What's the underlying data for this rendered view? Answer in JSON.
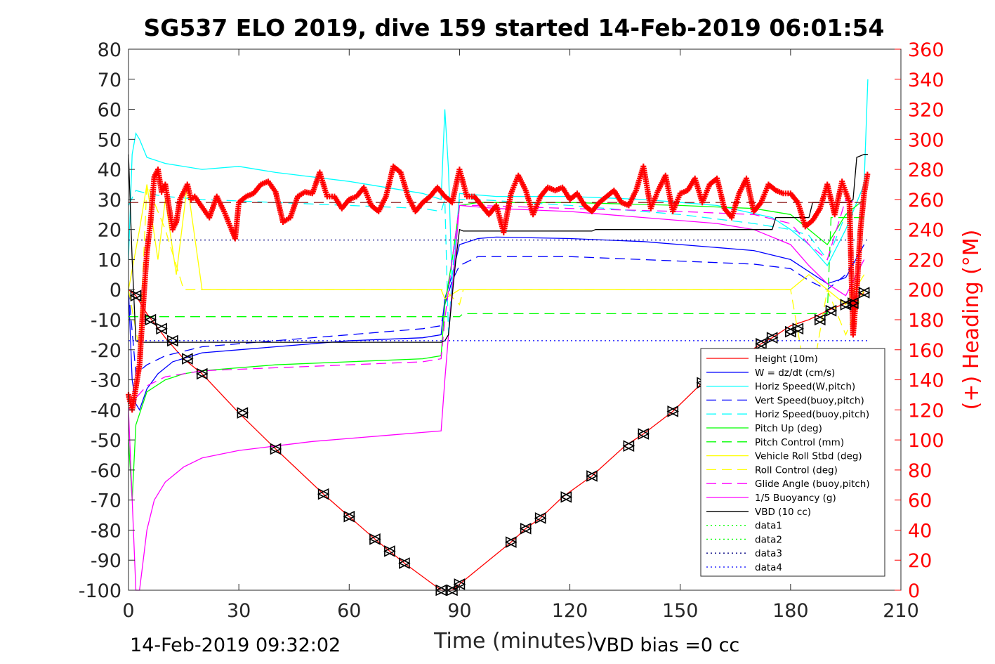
{
  "chart_data": {
    "type": "line",
    "title": "SG537 ELO 2019, dive 159 started 14-Feb-2019 06:01:54",
    "xlabel": "Time (minutes)",
    "ylabel": "",
    "ylabel_right": "(+) Heading (°M)",
    "xlim": [
      0,
      210
    ],
    "ylim": [
      -100,
      80
    ],
    "ylim_right": [
      0,
      360
    ],
    "xticks": [
      0,
      30,
      60,
      90,
      120,
      150,
      180,
      210
    ],
    "yticks": [
      -100,
      -90,
      -80,
      -70,
      -60,
      -50,
      -40,
      -30,
      -20,
      -10,
      0,
      10,
      20,
      30,
      40,
      50,
      60,
      70,
      80
    ],
    "yticks_right": [
      0,
      20,
      40,
      60,
      80,
      100,
      120,
      140,
      160,
      180,
      200,
      220,
      240,
      260,
      280,
      300,
      320,
      340,
      360
    ],
    "grid": false,
    "legend_position": "right-lower",
    "footer_left": "14-Feb-2019 09:32:02",
    "footer_right": "VBD bias =0 cc",
    "colors": {
      "red": "#ff0000",
      "blue": "#0000ff",
      "cyan": "#00ffff",
      "green": "#00ff00",
      "yellow": "#ffff00",
      "magenta": "#ff00ff",
      "black": "#000000"
    },
    "series": [
      {
        "name": "Height (10m)",
        "color": "#ff0000",
        "dash": "solid",
        "x": [
          0,
          2,
          5,
          10,
          15,
          20,
          30,
          40,
          53,
          60,
          67,
          71,
          75,
          85,
          88,
          90,
          104,
          108,
          112,
          118,
          126,
          135,
          140,
          148,
          156,
          172,
          175,
          180,
          185,
          190,
          195,
          200
        ],
        "y": [
          0,
          -2,
          -8,
          -16,
          -23,
          -28,
          -41,
          -53,
          -68,
          -75.5,
          -83,
          -87,
          -91,
          -100,
          -100,
          -98,
          -84,
          -79.5,
          -76,
          -69,
          -62,
          -52,
          -48,
          -40.5,
          -31,
          -18,
          -16,
          -12,
          -10,
          -7,
          -4.5,
          -1
        ]
      },
      {
        "name": "W = dz/dt (cm/s)",
        "color": "#0000ff",
        "dash": "solid",
        "x": [
          0,
          1,
          2,
          3,
          5,
          8,
          12,
          20,
          30,
          40,
          50,
          60,
          70,
          80,
          85,
          86,
          88,
          90,
          95,
          100,
          120,
          140,
          160,
          170,
          180,
          185,
          190,
          195,
          200
        ],
        "y": [
          0,
          -30,
          -38,
          -40,
          -33,
          -28,
          -24,
          -21,
          -20,
          -19,
          -18,
          -17,
          -16.5,
          -16,
          -15,
          -3,
          5,
          15,
          17,
          17.5,
          17,
          16,
          14,
          13,
          10,
          6,
          2,
          4,
          15
        ]
      },
      {
        "name": "Horiz Speed(W,pitch)",
        "color": "#00ffff",
        "dash": "solid",
        "x": [
          0,
          1,
          2,
          3,
          5,
          10,
          20,
          30,
          40,
          60,
          80,
          85,
          86,
          87,
          88,
          90,
          100,
          120,
          140,
          160,
          175,
          180,
          185,
          190,
          195,
          200,
          201
        ],
        "y": [
          10,
          45,
          52,
          50,
          44,
          42,
          40,
          41,
          39,
          36,
          32,
          30,
          60,
          40,
          0,
          32,
          31,
          31,
          30,
          28,
          24,
          20,
          15,
          8,
          20,
          35,
          70
        ]
      },
      {
        "name": "Vert Speed(buoy,pitch)",
        "color": "#0000ff",
        "dash": "dashed",
        "x": [
          0,
          2,
          5,
          10,
          20,
          40,
          60,
          80,
          85,
          86,
          88,
          90,
          95,
          120,
          150,
          170,
          180,
          185,
          190,
          195,
          200
        ],
        "y": [
          0,
          -28,
          -25,
          -22,
          -19,
          -17,
          -15,
          -13,
          -12,
          -5,
          3,
          8,
          11,
          11,
          9.5,
          8.5,
          7,
          3,
          0,
          5,
          15
        ]
      },
      {
        "name": "Horiz Speed(buoy,pitch)",
        "color": "#00ffff",
        "dash": "dashed",
        "x": [
          0,
          2,
          5,
          10,
          20,
          40,
          60,
          80,
          85,
          86,
          87,
          88,
          90,
          95,
          120,
          150,
          170,
          180,
          185,
          190,
          195,
          200
        ],
        "y": [
          28,
          33,
          32,
          31,
          30,
          29,
          28,
          27,
          26,
          30,
          -15,
          5,
          30,
          30,
          28,
          25,
          22,
          20,
          18,
          10,
          25,
          25
        ]
      },
      {
        "name": "Pitch Up (deg)",
        "color": "#00ff00",
        "dash": "solid",
        "x": [
          0,
          1,
          2,
          5,
          10,
          15,
          20,
          30,
          40,
          60,
          80,
          85,
          86,
          88,
          90,
          95,
          120,
          150,
          170,
          180,
          185,
          190,
          195,
          200
        ],
        "y": [
          -50,
          -70,
          -45,
          -34,
          -30,
          -28,
          -27,
          -26,
          -25,
          -24,
          -23,
          -22,
          -5,
          10,
          28,
          29,
          29,
          28,
          27,
          25,
          20,
          15,
          25,
          30
        ]
      },
      {
        "name": "Pitch Control (mm)",
        "color": "#00ff00",
        "dash": "dashed",
        "x": [
          0,
          3,
          90,
          91,
          190,
          191,
          200
        ],
        "y": [
          -9,
          -9,
          -9,
          -8,
          -8,
          24,
          24
        ]
      },
      {
        "name": "Vehicle Roll Stbd (deg)",
        "color": "#ffff00",
        "dash": "solid",
        "x": [
          0,
          3,
          5,
          8,
          10,
          13,
          16,
          20,
          30,
          40,
          50,
          60,
          70,
          80,
          85,
          86,
          90,
          91,
          100,
          120,
          150,
          170,
          180,
          185,
          190,
          195,
          200
        ],
        "y": [
          0,
          20,
          35,
          10,
          30,
          5,
          35,
          0,
          0,
          0,
          0,
          0,
          0,
          0,
          0,
          -3,
          0,
          0,
          0,
          0,
          0,
          0,
          0,
          5,
          0,
          -5,
          5
        ]
      },
      {
        "name": "Roll Control (deg)",
        "color": "#ffff00",
        "dash": "dashed",
        "x": [
          0,
          3,
          5,
          10,
          15,
          20,
          50,
          80,
          85,
          86,
          90,
          91,
          120,
          150,
          180,
          185,
          190,
          195,
          200
        ],
        "y": [
          0,
          -20,
          35,
          20,
          0,
          0,
          0,
          0,
          0,
          0,
          -5,
          0,
          0,
          0,
          0,
          -35,
          0,
          -15,
          0
        ]
      },
      {
        "name": "Glide Angle (buoy,pitch)",
        "color": "#ff00ff",
        "dash": "dashed",
        "x": [
          0,
          2,
          5,
          10,
          20,
          40,
          60,
          80,
          85,
          86,
          88,
          90,
          95,
          120,
          150,
          170,
          180,
          185,
          190,
          195,
          200
        ],
        "y": [
          -40,
          -36,
          -32,
          -29,
          -27,
          -26,
          -25,
          -24,
          -23,
          -10,
          10,
          28,
          28,
          27,
          26,
          25,
          22,
          15,
          10,
          30,
          28
        ]
      },
      {
        "name": "1/5 Buoyancy (g)",
        "color": "#ff00ff",
        "dash": "solid",
        "x": [
          0,
          2,
          3,
          4,
          5,
          7,
          10,
          15,
          20,
          30,
          40,
          50,
          60,
          70,
          80,
          85,
          86,
          88,
          90,
          100,
          120,
          140,
          160,
          170,
          180,
          185,
          190,
          195,
          200
        ],
        "y": [
          -40,
          -100,
          -100,
          -90,
          -80,
          -70,
          -64,
          -59,
          -56,
          -53.5,
          -52,
          -50.5,
          -49.5,
          -48.5,
          -47.5,
          -47,
          -30,
          0,
          28,
          27,
          26,
          24,
          22,
          20,
          15,
          8,
          2,
          -2,
          10
        ]
      },
      {
        "name": "VBD (10 cc)",
        "color": "#000000",
        "dash": "solid",
        "x": [
          0,
          1,
          2,
          3,
          85,
          86,
          87,
          88,
          89,
          90,
          91,
          126,
          127,
          175,
          176,
          185,
          186,
          196,
          197,
          198,
          200,
          201
        ],
        "y": [
          45,
          10,
          -17,
          -17.5,
          -17.5,
          -17,
          -15,
          -2,
          10,
          20,
          19.5,
          19.5,
          20,
          20,
          24,
          24,
          29,
          29,
          30,
          44,
          45,
          45
        ]
      },
      {
        "name": "data1",
        "color": "#00ff00",
        "dash": "dotted",
        "x": [],
        "y": []
      },
      {
        "name": "data2",
        "color": "#00ff00",
        "dash": "dotted",
        "x": [],
        "y": []
      },
      {
        "name": "data3",
        "color": "#000080",
        "dash": "dotted",
        "x": [
          0,
          201
        ],
        "y": [
          16.5,
          16.5
        ]
      },
      {
        "name": "data4",
        "color": "#0000ff",
        "dash": "dotted",
        "x": [
          0,
          201
        ],
        "y": [
          -17,
          -17
        ]
      }
    ],
    "reference_lines": [
      {
        "color": "#800000",
        "dash": "dashed",
        "axis": "right",
        "y": 258,
        "x": [
          0,
          201
        ]
      }
    ],
    "heading_series": {
      "axis": "right",
      "color": "#ff0000",
      "marker": "+",
      "x": [
        0,
        1,
        2,
        3,
        4,
        5,
        6,
        7,
        8,
        9,
        10,
        11,
        12,
        13,
        14,
        15,
        16,
        17,
        18,
        20,
        22,
        24,
        26,
        28,
        29,
        30,
        32,
        34,
        36,
        38,
        40,
        42,
        44,
        46,
        48,
        50,
        52,
        54,
        56,
        58,
        60,
        62,
        64,
        66,
        68,
        70,
        72,
        74,
        76,
        78,
        80,
        82,
        84,
        86,
        88,
        90,
        92,
        94,
        96,
        98,
        100,
        102,
        104,
        106,
        108,
        110,
        112,
        114,
        116,
        118,
        120,
        122,
        124,
        126,
        128,
        130,
        132,
        134,
        136,
        138,
        140,
        142,
        144,
        146,
        148,
        150,
        152,
        154,
        156,
        158,
        160,
        162,
        164,
        166,
        168,
        170,
        172,
        174,
        176,
        178,
        180,
        182,
        184,
        186,
        188,
        190,
        192,
        194,
        195,
        196,
        197,
        198,
        199,
        200,
        201
      ],
      "y": [
        130,
        120,
        135,
        150,
        190,
        225,
        245,
        275,
        280,
        265,
        270,
        255,
        240,
        245,
        260,
        265,
        270,
        260,
        262,
        255,
        248,
        262,
        252,
        240,
        234,
        258,
        262,
        264,
        270,
        272,
        265,
        245,
        248,
        262,
        265,
        264,
        278,
        262,
        262,
        254,
        260,
        262,
        268,
        256,
        252,
        262,
        282,
        278,
        262,
        252,
        258,
        262,
        268,
        262,
        258,
        280,
        262,
        262,
        256,
        250,
        256,
        238,
        264,
        276,
        266,
        250,
        262,
        268,
        266,
        268,
        260,
        264,
        256,
        252,
        258,
        262,
        266,
        258,
        256,
        266,
        282,
        254,
        266,
        276,
        252,
        264,
        266,
        274,
        258,
        270,
        274,
        254,
        248,
        264,
        274,
        252,
        258,
        270,
        266,
        264,
        264,
        258,
        242,
        246,
        254,
        270,
        250,
        272,
        265,
        258,
        170,
        200,
        240,
        264,
        278
      ]
    },
    "triangle_markers": {
      "color": "#000000",
      "x": [
        2,
        6,
        9,
        12,
        16,
        20,
        31,
        40,
        53,
        60,
        67,
        71,
        75,
        85,
        88,
        90,
        104,
        108,
        112,
        119,
        126,
        136,
        140,
        148,
        156,
        172,
        175,
        180,
        182,
        188,
        191,
        195,
        197,
        200
      ],
      "y": [
        -2,
        -10,
        -13,
        -17,
        -23,
        -28,
        -41,
        -53,
        -68,
        -75.5,
        -83,
        -87,
        -91,
        -100,
        -100,
        -98,
        -84,
        -79.5,
        -76,
        -69,
        -62,
        -52,
        -48,
        -40.5,
        -31,
        -18,
        -16,
        -14,
        -13,
        -10,
        -7,
        -5,
        -4.5,
        -1
      ]
    }
  }
}
